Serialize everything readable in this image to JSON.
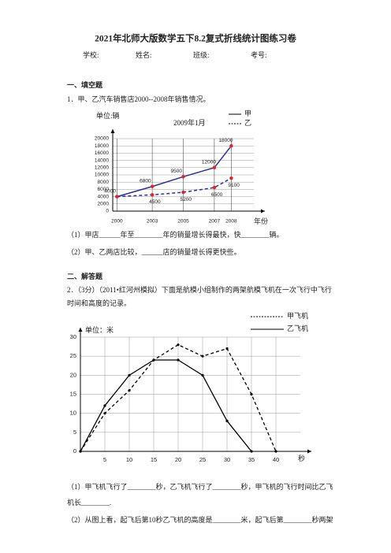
{
  "header": {
    "title": "2021年北师大版数学五下8.2复式折线统计图练习卷",
    "fields": [
      "学校:",
      "姓名:",
      "班级:",
      "考号:"
    ]
  },
  "sections": [
    {
      "heading": "一、填空题",
      "questions": [
        {
          "lines": [
            "1．甲、乙汽车销售店2000--2008年销售情况。"
          ],
          "chart_data": {
            "type": "line",
            "y_label": "单位:辆",
            "x_label": "年份",
            "annotation": "2009年1月",
            "categories": [
              "2000",
              "2003",
              "2005",
              "2007",
              "2008"
            ],
            "series": [
              {
                "name": "甲",
                "color": "#2e3192",
                "dashed": false,
                "values": [
                  4000,
                  6800,
                  9500,
                  12000,
                  18000
                ]
              },
              {
                "name": "乙",
                "color": "#2e3192",
                "dashed": true,
                "values": [
                  4000,
                  4500,
                  5200,
                  6500,
                  9100
                ],
                "value_labels": [
                  null,
                  "4500",
                  "5200",
                  "6500",
                  "9100"
                ]
              }
            ],
            "marker_color": "#e0242a",
            "ylim": [
              0,
              20000
            ],
            "yticks": [
              0,
              2000,
              4000,
              6000,
              8000,
              10000,
              12000,
              14000,
              16000,
              18000,
              20000
            ],
            "grid": true
          },
          "parts": [
            "（1）甲店______年至________年的销量增长得最快，快________辆。",
            "（2）甲、乙两店比较，______店的销量增长得更快些。"
          ]
        }
      ]
    },
    {
      "heading": "二、解答题",
      "questions": [
        {
          "lines": [
            "2．（3分）（2011•红河州模拟）下面是航模小组制作的两架航模飞机在一次飞行中飞行",
            "时间和高度的记录。"
          ],
          "chart_data": {
            "type": "line",
            "y_label": "单位：米",
            "x_label": "秒",
            "x": [
              0,
              5,
              10,
              15,
              20,
              25,
              30,
              35,
              40
            ],
            "series": [
              {
                "name": "甲飞机",
                "color": "#000000",
                "dashed": true,
                "values": [
                  0,
                  10,
                  16,
                  24,
                  28,
                  25,
                  27,
                  15,
                  0
                ]
              },
              {
                "name": "乙飞机",
                "color": "#000000",
                "dashed": false,
                "values": [
                  0,
                  12,
                  20,
                  24,
                  24,
                  20,
                  8,
                  0,
                  null
                ]
              }
            ],
            "marker_color": "#000000",
            "xlim": [
              0,
              45
            ],
            "xticks": [
              5,
              10,
              15,
              20,
              25,
              30,
              35,
              40
            ],
            "ylim": [
              0,
              30
            ],
            "yticks": [
              0,
              5,
              10,
              15,
              20,
              25,
              30
            ],
            "grid": true
          },
          "parts": [
            "（1）甲飞机飞行了________秒，乙飞机飞行了________秒，甲飞机的飞行时间比乙飞",
            "机长________.",
            "（2）从图上看，起飞后第10秒乙飞机的高度是________米，起飞后第________秒两架"
          ]
        }
      ]
    }
  ]
}
